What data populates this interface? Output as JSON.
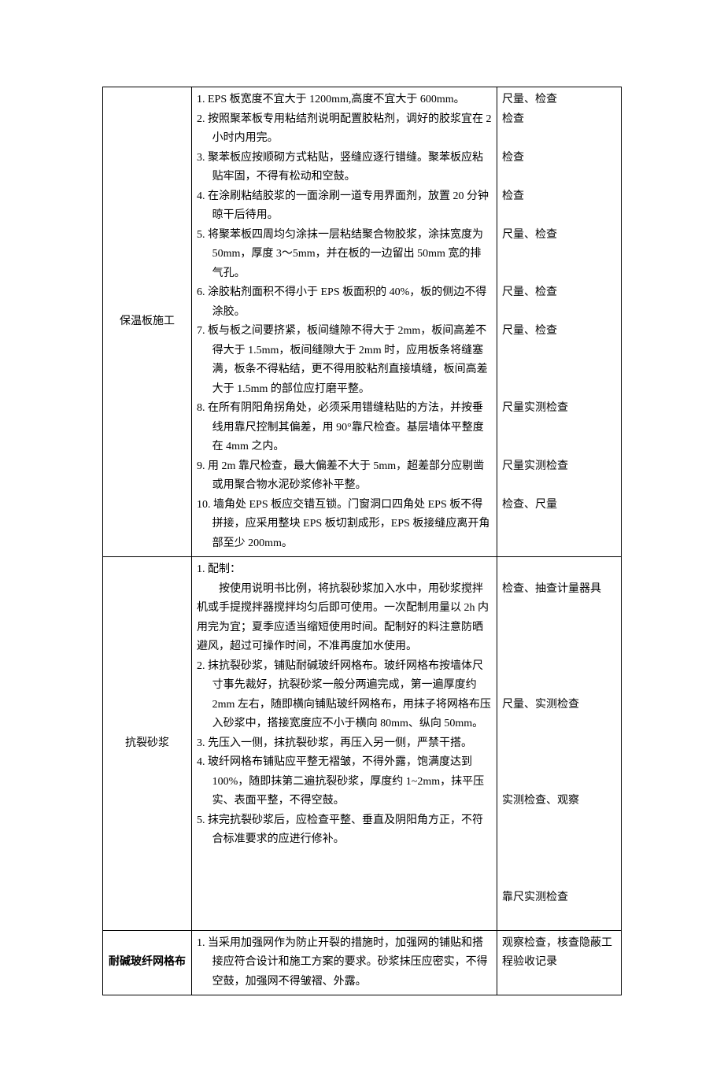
{
  "table": {
    "rows": [
      {
        "category": "保温板施工",
        "points": [
          {
            "num": "1.",
            "text": "EPS 板宽度不宜大于 1200mm,高度不宜大于 600mm。",
            "check": "尺量、检查"
          },
          {
            "num": "2.",
            "text": "按照聚苯板专用粘结剂说明配置胶粘剂，调好的胶浆宜在 2 小时内用完。",
            "check": "检查"
          },
          {
            "num": "3.",
            "text": "聚苯板应按顺砌方式粘贴，竖缝应逐行错缝。聚苯板应粘贴牢固，不得有松动和空鼓。",
            "check": "检查"
          },
          {
            "num": "4.",
            "text": "在涂刷粘结胶浆的一面涂刷一道专用界面剂，放置 20 分钟晾干后待用。",
            "check": "检查"
          },
          {
            "num": "5.",
            "text": "将聚苯板四周均匀涂抹一层粘结聚合物胶浆，涂抹宽度为 50mm，厚度 3～5mm，并在板的一边留出 50mm 宽的排气孔。",
            "check": "尺量、检查"
          },
          {
            "num": "6.",
            "text": "涂胶粘剂面积不得小于 EPS 板面积的 40%，板的侧边不得涂胶。",
            "check": "尺量、检查"
          },
          {
            "num": "7.",
            "text": "板与板之间要挤紧，板间缝隙不得大于 2mm，板间高差不得大于 1.5mm，板间缝隙大于 2mm 时，应用板条将缝塞满，板条不得粘结，更不得用胶粘剂直接填缝，板间高差大于 1.5mm 的部位应打磨平整。",
            "check": "尺量、检查"
          },
          {
            "num": "8.",
            "text": "在所有阴阳角拐角处，必须采用错缝粘贴的方法，并按垂线用靠尺控制其偏差，用 90°靠尺检查。基层墙体平整度在 4mm 之内。",
            "check": "尺量实测检查"
          },
          {
            "num": "9.",
            "text": "用 2m 靠尺检查，最大偏差不大于 5mm，超差部分应剔凿或用聚合物水泥砂浆修补平整。",
            "check": "尺量实测检查"
          },
          {
            "num": "10.",
            "text": " 墙角处 EPS 板应交错互锁。门窗洞口四角处 EPS 板不得拼接，应采用整块 EPS 板切割成形，EPS 板接缝应离开角部至少 200mm。",
            "check": "检查、尺量"
          }
        ]
      },
      {
        "category": "抗裂砂浆",
        "points": [
          {
            "num": "1.",
            "text": "配制：",
            "sub": "    按使用说明书比例，将抗裂砂浆加入水中，用砂浆搅拌机或手提搅拌器搅拌均匀后即可使用。一次配制用量以 2h 内用完为宜；夏季应适当缩短使用时间。配制好的料注意防晒避风，超过可操作时间，不准再度加水使用。",
            "check": "检查、抽查计量器具"
          },
          {
            "num": "2.",
            "text": "抹抗裂砂浆，铺贴耐碱玻纤网格布。玻纤网格布按墙体尺寸事先裁好，抗裂砂浆一般分两遍完成，第一遍厚度约 2mm 左右，随即横向铺贴玻纤网格布，用抹子将网格布压入砂浆中，搭接宽度应不小于横向 80mm、纵向 50mm。",
            "check": "尺量、实测检查"
          },
          {
            "num": "3.",
            "text": "先压入一侧，抹抗裂砂浆，再压入另一侧，严禁干搭。",
            "check": "实测检查、观察"
          },
          {
            "num": "4.",
            "text": "玻纤网格布铺贴应平整无褶皱，不得外露，饱满度达到 100%，随即抹第二遍抗裂砂浆，厚度约 1~2mm，抹平压实、表面平整，不得空鼓。",
            "check": ""
          },
          {
            "num": "5.",
            "text": "抹完抗裂砂浆后，应检查平整、垂直及阴阳角方正，不符合标准要求的应进行修补。",
            "check": "靠尺实测检查"
          }
        ]
      },
      {
        "category": "耐碱玻纤网格布",
        "points": [
          {
            "num": "1.",
            "text": "当采用加强网作为防止开裂的措施时，加强网的铺贴和搭接应符合设计和施工方案的要求。砂浆抹压应密实，不得空鼓，加强网不得皱褶、外露。",
            "check": "观察检查，核查隐蔽工程验收记录"
          }
        ]
      }
    ]
  }
}
